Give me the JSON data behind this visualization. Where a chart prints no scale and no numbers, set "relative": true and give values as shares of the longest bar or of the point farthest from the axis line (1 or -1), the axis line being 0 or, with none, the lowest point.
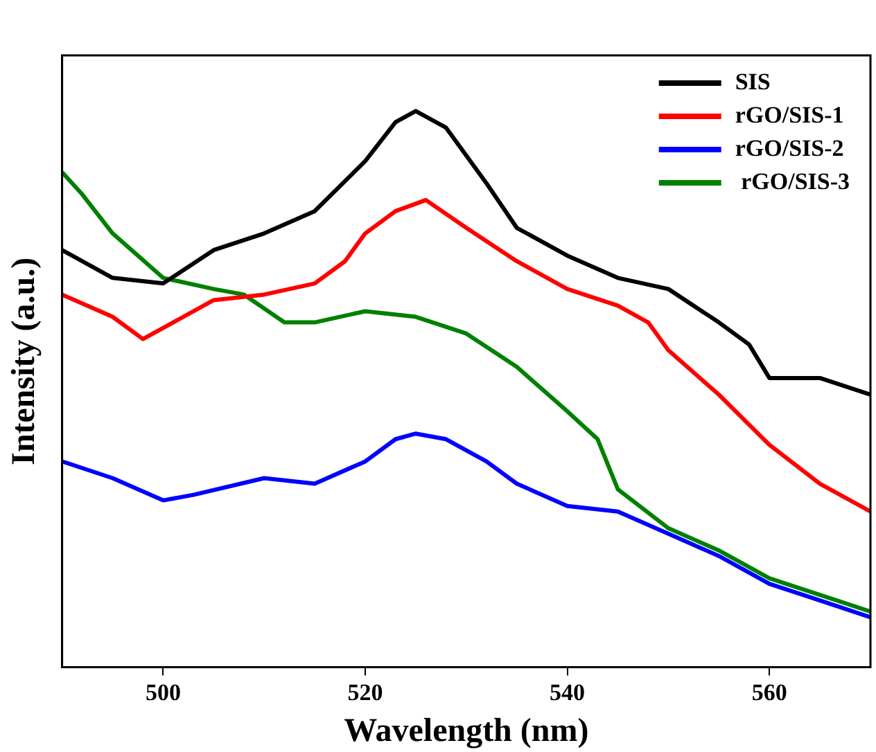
{
  "chart_data": {
    "type": "line",
    "xlabel": "Wavelength (nm)",
    "ylabel": "Intensity (a.u.)",
    "relative": true,
    "xlim": [
      490,
      570
    ],
    "xticks": [
      500,
      520,
      540,
      560
    ],
    "grid": false,
    "legend": "top right",
    "marker": "none",
    "line_style": "solid",
    "series": [
      {
        "name": "SIS",
        "color": "#000000",
        "x": [
          490,
          495,
          500,
          505,
          510,
          515,
          520,
          523,
          525,
          528,
          532,
          535,
          540,
          545,
          550,
          555,
          558,
          560,
          565,
          570
        ],
        "values": [
          0.75,
          0.7,
          0.69,
          0.75,
          0.78,
          0.82,
          0.91,
          0.98,
          1,
          0.97,
          0.87,
          0.79,
          0.74,
          0.7,
          0.68,
          0.62,
          0.58,
          0.52,
          0.52,
          0.49
        ]
      },
      {
        "name": "rGO/SIS-1",
        "color": "#ff0000",
        "x": [
          490,
          495,
          498,
          500,
          505,
          510,
          515,
          518,
          520,
          523,
          526,
          530,
          535,
          540,
          545,
          548,
          550,
          555,
          560,
          565,
          570
        ],
        "values": [
          0.67,
          0.63,
          0.59,
          0.61,
          0.66,
          0.67,
          0.69,
          0.73,
          0.78,
          0.82,
          0.84,
          0.79,
          0.73,
          0.68,
          0.65,
          0.62,
          0.57,
          0.49,
          0.4,
          0.33,
          0.28
        ]
      },
      {
        "name": "rGO/SIS-2",
        "color": "#0000ff",
        "x": [
          490,
          495,
          500,
          503,
          510,
          515,
          520,
          523,
          525,
          528,
          532,
          535,
          540,
          545,
          550,
          555,
          560,
          565,
          570
        ],
        "values": [
          0.37,
          0.34,
          0.3,
          0.31,
          0.34,
          0.33,
          0.37,
          0.41,
          0.42,
          0.41,
          0.37,
          0.33,
          0.29,
          0.28,
          0.24,
          0.2,
          0.15,
          0.12,
          0.09
        ]
      },
      {
        "name": " rGO/SIS-3",
        "color": "#008000",
        "x": [
          490,
          492,
          495,
          500,
          505,
          508,
          512,
          515,
          520,
          525,
          530,
          535,
          540,
          543,
          545,
          550,
          555,
          560,
          565,
          570
        ],
        "values": [
          0.89,
          0.85,
          0.78,
          0.7,
          0.68,
          0.67,
          0.62,
          0.62,
          0.64,
          0.63,
          0.6,
          0.54,
          0.46,
          0.41,
          0.32,
          0.25,
          0.21,
          0.16,
          0.13,
          0.1
        ]
      }
    ]
  }
}
